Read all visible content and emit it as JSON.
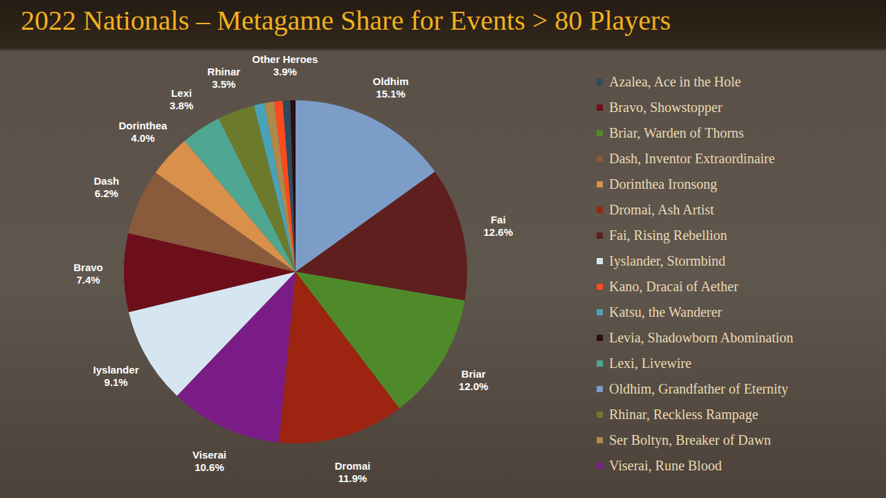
{
  "chart_data": {
    "type": "pie",
    "title": "2022 Nationals – Metagame Share for Events > 80 Players",
    "data_labels": true,
    "legend": "right",
    "categories": [
      "Oldhim, Grandfather of Eternity",
      "Fai, Rising Rebellion",
      "Briar, Warden of Thorns",
      "Dromai, Ash Artist",
      "Viserai, Rune Blood",
      "Iyslander, Stormbind",
      "Bravo, Showstopper",
      "Dash, Inventor Extraordinaire",
      "Dorinthea Ironsong",
      "Lexi, Livewire",
      "Rhinar, Reckless Rampage",
      "Katsu, the Wanderer",
      "Ser Boltyn, Breaker of Dawn",
      "Kano, Dracai of Aether",
      "Azalea, Ace in the Hole",
      "Levia, Shadowborn Abomination"
    ],
    "labels": [
      "Oldhim",
      "Fai",
      "Briar",
      "Dromai",
      "Viserai",
      "Iyslander",
      "Bravo",
      "Dash",
      "Dorinthea",
      "Lexi",
      "Rhinar",
      null,
      null,
      null,
      null,
      null
    ],
    "values": [
      15.1,
      12.6,
      12.0,
      11.9,
      10.6,
      9.1,
      7.4,
      6.2,
      4.0,
      3.8,
      3.5,
      1.0,
      0.9,
      0.8,
      0.7,
      0.5
    ],
    "value_labels": [
      "15.1%",
      "12.6%",
      "12.0%",
      "11.9%",
      "10.6%",
      "9.1%",
      "7.4%",
      "6.2%",
      "4.0%",
      "3.8%",
      "3.5%",
      null,
      null,
      null,
      null,
      null
    ],
    "colors": [
      "#7b9dc7",
      "#5e1f1e",
      "#4f8a2a",
      "#9c2411",
      "#7b1c86",
      "#d6e6f1",
      "#6c0f1a",
      "#8a5a3c",
      "#d9904a",
      "#4fa791",
      "#6c7a2b",
      "#4aa2b8",
      "#b08a4a",
      "#ff4a1e",
      "#2f4a5e",
      "#2a0f14"
    ],
    "legend_entries": [
      "Azalea, Ace in the Hole",
      "Bravo, Showstopper",
      "Briar, Warden of Thorns",
      "Dash, Inventor Extraordinaire",
      "Dorinthea Ironsong",
      "Dromai, Ash Artist",
      "Fai, Rising Rebellion",
      "Iyslander, Stormbind",
      "Kano, Dracai of Aether",
      "Katsu, the Wanderer",
      "Levia, Shadowborn Abomination",
      "Lexi, Livewire",
      "Oldhim, Grandfather of Eternity",
      "Rhinar, Reckless Rampage",
      "Ser Boltyn, Breaker of Dawn",
      "Viserai, Rune Blood"
    ],
    "groups": [
      {
        "label": "Other Heroes",
        "value": 3.9,
        "value_label": "3.9%",
        "members": [
          "Katsu, the Wanderer",
          "Ser Boltyn, Breaker of Dawn",
          "Kano, Dracai of Aether",
          "Azalea, Ace in the Hole",
          "Levia, Shadowborn Abomination"
        ]
      }
    ]
  }
}
